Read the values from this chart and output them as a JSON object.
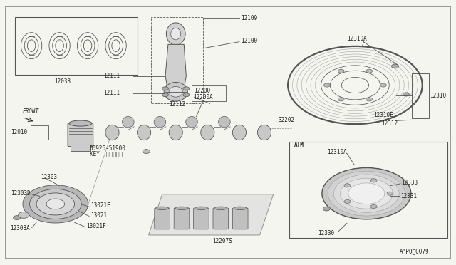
{
  "bg_color": "#f5f5f0",
  "border_color": "#888888",
  "line_color": "#555555",
  "text_color": "#222222",
  "parts_labels": {
    "rings": "12033",
    "rod_top": "12109",
    "rod_right": "12100",
    "piston": "12010",
    "rod_bolt1": "12111",
    "rod_bolt2": "12111",
    "rod_bearing": "12112",
    "crank": "12200",
    "crank_a": "12200A",
    "flywheel_a": "12310A",
    "flywheel": "12310",
    "flywheel_e": "12310E",
    "flywheel_ring": "12312",
    "pilot": "32202",
    "key1": "00926-51900",
    "key2": "KEY  キー（１）",
    "front": "FRONT",
    "pulley": "12303",
    "pulley_d": "12303D",
    "pulley_a": "12303A",
    "timing_e": "13021E",
    "timing": "13021",
    "timing_f": "13021F",
    "bearing_cap": "12207S",
    "atm": "ATM",
    "atm_a": "12310A",
    "atm_r1": "12333",
    "atm_r2": "12331",
    "atm_b": "12330",
    "diagram": "A²P0１0079"
  }
}
